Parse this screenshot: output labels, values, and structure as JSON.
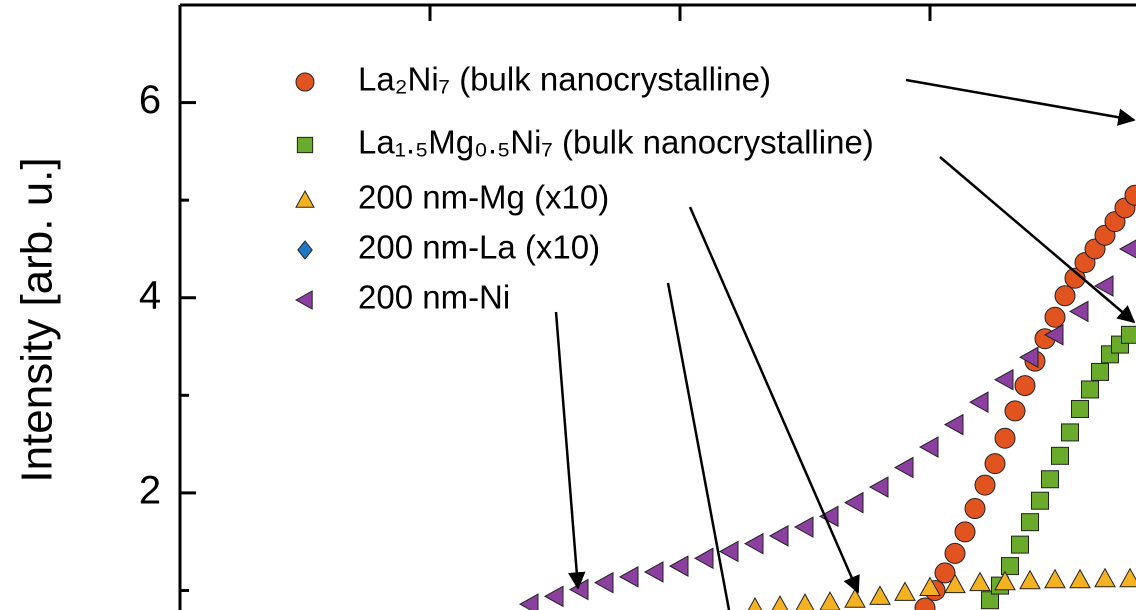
{
  "chart_data": {
    "type": "scatter",
    "y_label": "Intensity [arb. u.]",
    "ylim": [
      0.8,
      7.0
    ],
    "yticks": [
      2,
      4,
      6
    ],
    "yminorticks": [
      1,
      3,
      5
    ],
    "xlim": [
      0,
      3.824
    ],
    "xtickmarks": [
      1,
      2,
      3
    ],
    "series": [
      {
        "name": "La₂Ni₇ (bulk nanocrystalline)",
        "color": "#e2541f",
        "marker": "circle",
        "x": [
          2.98,
          3.02,
          3.06,
          3.1,
          3.14,
          3.18,
          3.22,
          3.26,
          3.3,
          3.34,
          3.38,
          3.42,
          3.46,
          3.5,
          3.54,
          3.58,
          3.62,
          3.66,
          3.7,
          3.74,
          3.78,
          3.82
        ],
        "values": [
          0.82,
          1.0,
          1.18,
          1.38,
          1.6,
          1.84,
          2.08,
          2.3,
          2.56,
          2.84,
          3.1,
          3.35,
          3.58,
          3.8,
          4.02,
          4.2,
          4.36,
          4.5,
          4.64,
          4.78,
          4.92,
          5.05
        ]
      },
      {
        "name": "La₁.₅Mg₀.₅Ni₇ (bulk nanocrystalline)",
        "color": "#6aab2b",
        "marker": "square",
        "x": [
          3.24,
          3.28,
          3.32,
          3.36,
          3.4,
          3.44,
          3.48,
          3.52,
          3.56,
          3.6,
          3.64,
          3.68,
          3.72,
          3.76,
          3.8
        ],
        "values": [
          0.9,
          1.05,
          1.25,
          1.47,
          1.7,
          1.92,
          2.14,
          2.38,
          2.62,
          2.86,
          3.06,
          3.24,
          3.42,
          3.52,
          3.62
        ]
      },
      {
        "name": "200 nm-Mg (x10)",
        "color": "#f4b121",
        "marker": "triangle-up",
        "x": [
          2.3,
          2.4,
          2.5,
          2.6,
          2.7,
          2.8,
          2.9,
          3.0,
          3.1,
          3.2,
          3.3,
          3.4,
          3.5,
          3.6,
          3.7,
          3.8
        ],
        "values": [
          0.82,
          0.84,
          0.86,
          0.88,
          0.91,
          0.94,
          0.98,
          1.03,
          1.06,
          1.08,
          1.09,
          1.1,
          1.11,
          1.11,
          1.12,
          1.12
        ]
      },
      {
        "name": "200 nm-La (x10)",
        "color": "#1f78c4",
        "marker": "diamond",
        "x": [],
        "values": []
      },
      {
        "name": "200 nm-Ni",
        "color": "#8b3f9e",
        "marker": "triangle-left",
        "x": [
          1.4,
          1.5,
          1.6,
          1.7,
          1.8,
          1.9,
          2.0,
          2.1,
          2.2,
          2.3,
          2.4,
          2.5,
          2.6,
          2.7,
          2.8,
          2.9,
          3.0,
          3.1,
          3.2,
          3.3,
          3.4,
          3.5,
          3.6,
          3.7,
          3.8
        ],
        "values": [
          0.86,
          0.94,
          1.01,
          1.08,
          1.14,
          1.19,
          1.25,
          1.33,
          1.4,
          1.48,
          1.56,
          1.65,
          1.76,
          1.9,
          2.06,
          2.26,
          2.47,
          2.7,
          2.93,
          3.16,
          3.39,
          3.62,
          3.86,
          4.12,
          4.5
        ]
      }
    ]
  }
}
